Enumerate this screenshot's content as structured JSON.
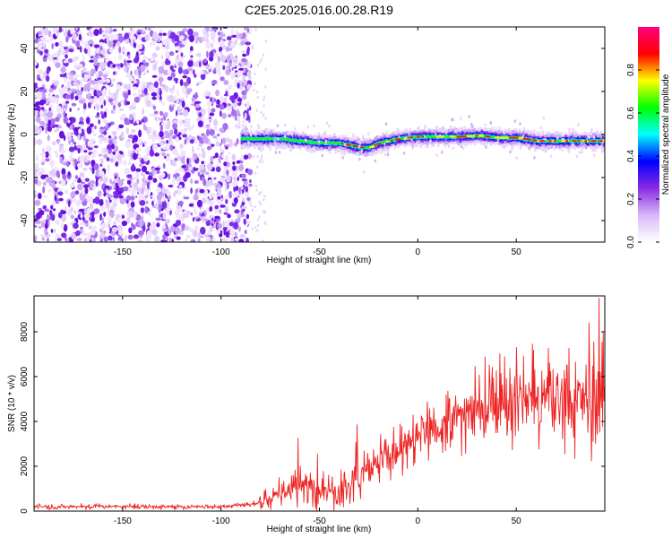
{
  "title": "C2E5.2025.016.00.28.R19",
  "chart_data": [
    {
      "type": "heatmap",
      "xlabel": "Height of straight line (km)",
      "ylabel": "Frequency (Hz)",
      "xlim": [
        -195,
        95
      ],
      "ylim": [
        -50,
        50
      ],
      "x_ticks": [
        -150,
        -100,
        -50,
        0,
        50
      ],
      "y_ticks": [
        -40,
        -20,
        0,
        20,
        40
      ],
      "noise_region_x": [
        -195,
        -85
      ],
      "signal_region_x": [
        -90,
        95
      ],
      "ridge": {
        "x": [
          -90,
          -80,
          -70,
          -60,
          -50,
          -40,
          -30,
          -25,
          -20,
          -10,
          0,
          10,
          20,
          30,
          40,
          50,
          60,
          70,
          80,
          90,
          95
        ],
        "frequency": [
          -2,
          -2,
          -2,
          -3,
          -4,
          -4,
          -6,
          -6,
          -4,
          -2,
          -1,
          -1,
          -1,
          -0.5,
          -1.5,
          -1.5,
          -3,
          -3,
          -3,
          -3,
          -3
        ]
      },
      "colorbar": {
        "label": "Normalized spectral amplitude",
        "range": [
          0.0,
          1.0
        ],
        "ticks": [
          "0.0",
          "0.2",
          "0.4",
          "0.6",
          "0.8"
        ],
        "tick_values": [
          0.0,
          0.2,
          0.4,
          0.6,
          0.8
        ],
        "colors": [
          "#ffffff",
          "#d8b8f8",
          "#8a2be2",
          "#0000ff",
          "#00ffff",
          "#00ff00",
          "#ffff00",
          "#ff0000",
          "#ff0080"
        ]
      }
    },
    {
      "type": "line",
      "xlabel": "Height of straight line (km)",
      "ylabel": "SNR (10 * v/v)",
      "xlim": [
        -195,
        95
      ],
      "ylim": [
        0,
        9600
      ],
      "x_ticks": [
        -150,
        -100,
        -50,
        0,
        50
      ],
      "y_ticks": [
        0,
        2000,
        4000,
        6000,
        8000
      ],
      "color": "#ee2222",
      "envelope": {
        "x": [
          -195,
          -100,
          -85,
          -80,
          -70,
          -60,
          -55,
          -50,
          -45,
          -40,
          -35,
          -30,
          -25,
          -20,
          -10,
          0,
          10,
          20,
          30,
          40,
          50,
          60,
          70,
          80,
          90,
          95
        ],
        "mean": [
          200,
          200,
          300,
          400,
          800,
          1200,
          1000,
          1000,
          1100,
          800,
          1300,
          1700,
          2000,
          2200,
          2600,
          3300,
          3800,
          4300,
          4600,
          4800,
          4900,
          5000,
          4800,
          4900,
          5000,
          5000
        ],
        "spread": [
          80,
          80,
          100,
          200,
          450,
          700,
          700,
          600,
          700,
          600,
          700,
          900,
          700,
          700,
          700,
          700,
          900,
          1100,
          1200,
          1300,
          1300,
          1400,
          1500,
          1600,
          1700,
          1700
        ]
      },
      "peaks": [
        {
          "x": -61,
          "y": 3250
        },
        {
          "x": -51,
          "y": 2550
        },
        {
          "x": -31,
          "y": 3850
        },
        {
          "x": 8,
          "y": 4600
        },
        {
          "x": 50,
          "y": 7300
        },
        {
          "x": 87,
          "y": 8400
        },
        {
          "x": 92,
          "y": 9500
        }
      ]
    }
  ]
}
